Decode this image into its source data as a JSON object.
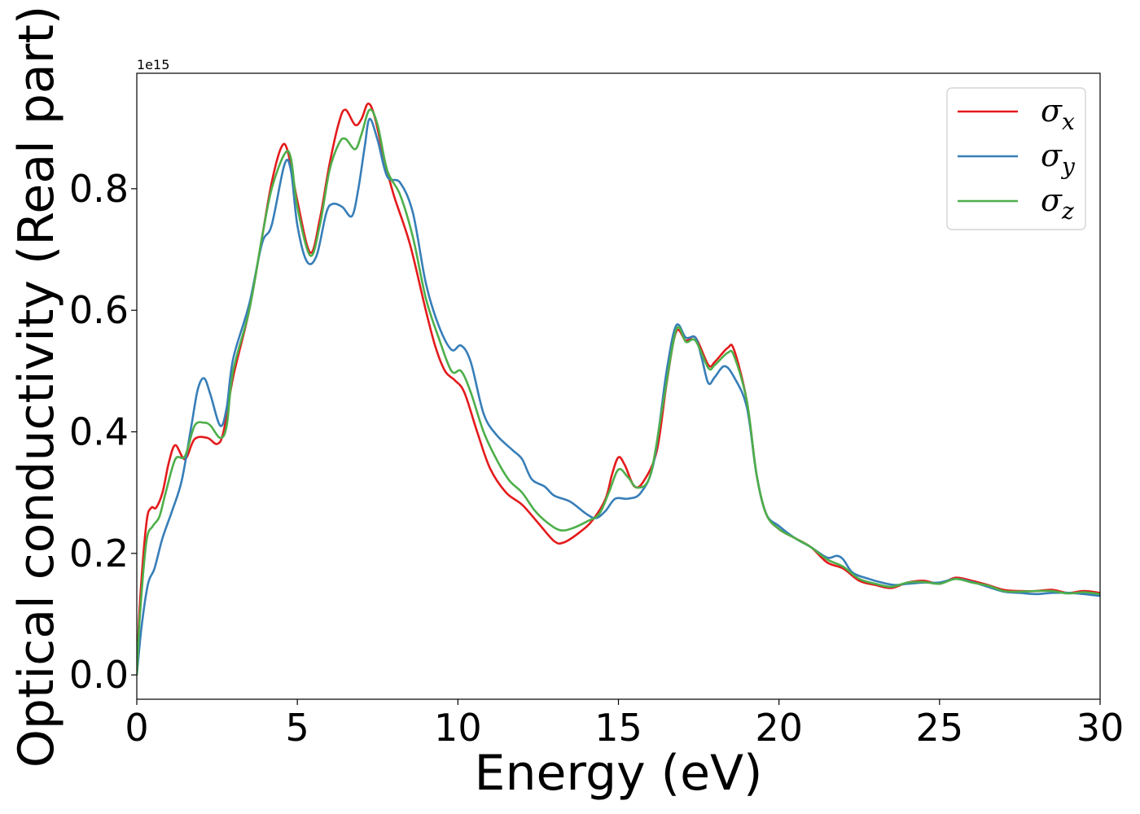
{
  "chart_data": {
    "type": "line",
    "title": "",
    "xlabel": "Energy (eV)",
    "ylabel": "Optical conductivity (Real part)",
    "y_offset_label": "1e15",
    "xlim": [
      0,
      30
    ],
    "ylim": [
      -0.04,
      0.99
    ],
    "x_ticks": [
      0,
      5,
      10,
      15,
      20,
      25,
      30
    ],
    "x_tick_labels": [
      "0",
      "5",
      "10",
      "15",
      "20",
      "25",
      "30"
    ],
    "y_ticks": [
      0.0,
      0.2,
      0.4,
      0.6,
      0.8
    ],
    "y_tick_labels": [
      "0.0",
      "0.2",
      "0.4",
      "0.6",
      "0.8"
    ],
    "grid": false,
    "legend_position": "top-right",
    "series": [
      {
        "name": "σx",
        "legend_base": "σ",
        "legend_sub": "x",
        "color": "#e41a1c",
        "points": [
          [
            0,
            0
          ],
          [
            0.1,
            0.12
          ],
          [
            0.3,
            0.25
          ],
          [
            0.45,
            0.275
          ],
          [
            0.6,
            0.275
          ],
          [
            0.8,
            0.3
          ],
          [
            1.0,
            0.35
          ],
          [
            1.2,
            0.378
          ],
          [
            1.5,
            0.355
          ],
          [
            1.8,
            0.388
          ],
          [
            2.2,
            0.39
          ],
          [
            2.5,
            0.38
          ],
          [
            2.7,
            0.4
          ],
          [
            3.0,
            0.49
          ],
          [
            3.5,
            0.6
          ],
          [
            3.9,
            0.72
          ],
          [
            4.2,
            0.81
          ],
          [
            4.5,
            0.868
          ],
          [
            4.7,
            0.862
          ],
          [
            5.0,
            0.78
          ],
          [
            5.4,
            0.695
          ],
          [
            5.7,
            0.75
          ],
          [
            6.0,
            0.84
          ],
          [
            6.3,
            0.91
          ],
          [
            6.5,
            0.93
          ],
          [
            6.8,
            0.905
          ],
          [
            7.0,
            0.915
          ],
          [
            7.2,
            0.94
          ],
          [
            7.4,
            0.92
          ],
          [
            7.7,
            0.85
          ],
          [
            8.0,
            0.79
          ],
          [
            8.5,
            0.71
          ],
          [
            9.0,
            0.6
          ],
          [
            9.3,
            0.54
          ],
          [
            9.6,
            0.5
          ],
          [
            9.9,
            0.485
          ],
          [
            10.2,
            0.465
          ],
          [
            10.6,
            0.4
          ],
          [
            11.0,
            0.34
          ],
          [
            11.5,
            0.3
          ],
          [
            12.0,
            0.28
          ],
          [
            12.5,
            0.25
          ],
          [
            13.0,
            0.22
          ],
          [
            13.3,
            0.218
          ],
          [
            13.8,
            0.235
          ],
          [
            14.2,
            0.255
          ],
          [
            14.6,
            0.29
          ],
          [
            14.8,
            0.33
          ],
          [
            15.0,
            0.358
          ],
          [
            15.2,
            0.345
          ],
          [
            15.5,
            0.31
          ],
          [
            15.8,
            0.32
          ],
          [
            16.2,
            0.37
          ],
          [
            16.5,
            0.48
          ],
          [
            16.8,
            0.565
          ],
          [
            17.1,
            0.55
          ],
          [
            17.4,
            0.555
          ],
          [
            17.8,
            0.51
          ],
          [
            18.0,
            0.515
          ],
          [
            18.4,
            0.538
          ],
          [
            18.6,
            0.535
          ],
          [
            19.0,
            0.45
          ],
          [
            19.3,
            0.33
          ],
          [
            19.6,
            0.265
          ],
          [
            20.0,
            0.24
          ],
          [
            20.5,
            0.225
          ],
          [
            21.0,
            0.21
          ],
          [
            21.5,
            0.185
          ],
          [
            22.0,
            0.175
          ],
          [
            22.5,
            0.155
          ],
          [
            23.0,
            0.148
          ],
          [
            23.5,
            0.143
          ],
          [
            24.0,
            0.152
          ],
          [
            24.5,
            0.155
          ],
          [
            25.0,
            0.15
          ],
          [
            25.5,
            0.16
          ],
          [
            26.0,
            0.155
          ],
          [
            26.5,
            0.148
          ],
          [
            27.0,
            0.14
          ],
          [
            27.5,
            0.138
          ],
          [
            28.0,
            0.138
          ],
          [
            28.5,
            0.14
          ],
          [
            29.0,
            0.135
          ],
          [
            29.5,
            0.138
          ],
          [
            30.0,
            0.135
          ]
        ]
      },
      {
        "name": "σy",
        "legend_base": "σ",
        "legend_sub": "y",
        "color": "#377eb8",
        "points": [
          [
            0,
            0
          ],
          [
            0.15,
            0.08
          ],
          [
            0.35,
            0.15
          ],
          [
            0.55,
            0.175
          ],
          [
            0.8,
            0.225
          ],
          [
            1.1,
            0.27
          ],
          [
            1.4,
            0.32
          ],
          [
            1.7,
            0.41
          ],
          [
            1.9,
            0.47
          ],
          [
            2.1,
            0.488
          ],
          [
            2.3,
            0.46
          ],
          [
            2.6,
            0.41
          ],
          [
            2.8,
            0.44
          ],
          [
            3.0,
            0.52
          ],
          [
            3.5,
            0.61
          ],
          [
            3.9,
            0.71
          ],
          [
            4.2,
            0.74
          ],
          [
            4.6,
            0.84
          ],
          [
            4.8,
            0.83
          ],
          [
            5.0,
            0.74
          ],
          [
            5.3,
            0.68
          ],
          [
            5.6,
            0.69
          ],
          [
            5.9,
            0.76
          ],
          [
            6.1,
            0.775
          ],
          [
            6.4,
            0.77
          ],
          [
            6.7,
            0.755
          ],
          [
            6.9,
            0.8
          ],
          [
            7.1,
            0.87
          ],
          [
            7.25,
            0.915
          ],
          [
            7.5,
            0.88
          ],
          [
            7.8,
            0.82
          ],
          [
            8.2,
            0.81
          ],
          [
            8.6,
            0.76
          ],
          [
            9.0,
            0.645
          ],
          [
            9.4,
            0.575
          ],
          [
            9.8,
            0.535
          ],
          [
            10.1,
            0.542
          ],
          [
            10.4,
            0.515
          ],
          [
            10.8,
            0.43
          ],
          [
            11.2,
            0.395
          ],
          [
            11.7,
            0.37
          ],
          [
            12.0,
            0.355
          ],
          [
            12.3,
            0.322
          ],
          [
            12.7,
            0.31
          ],
          [
            13.0,
            0.295
          ],
          [
            13.5,
            0.285
          ],
          [
            14.0,
            0.265
          ],
          [
            14.3,
            0.258
          ],
          [
            14.6,
            0.27
          ],
          [
            14.9,
            0.29
          ],
          [
            15.3,
            0.29
          ],
          [
            15.7,
            0.3
          ],
          [
            16.1,
            0.35
          ],
          [
            16.5,
            0.5
          ],
          [
            16.8,
            0.575
          ],
          [
            17.1,
            0.555
          ],
          [
            17.4,
            0.555
          ],
          [
            17.6,
            0.52
          ],
          [
            17.8,
            0.48
          ],
          [
            18.0,
            0.49
          ],
          [
            18.3,
            0.508
          ],
          [
            18.6,
            0.49
          ],
          [
            19.0,
            0.44
          ],
          [
            19.3,
            0.33
          ],
          [
            19.6,
            0.265
          ],
          [
            20.0,
            0.245
          ],
          [
            20.5,
            0.225
          ],
          [
            21.0,
            0.21
          ],
          [
            21.5,
            0.193
          ],
          [
            21.8,
            0.196
          ],
          [
            22.0,
            0.19
          ],
          [
            22.3,
            0.168
          ],
          [
            22.8,
            0.158
          ],
          [
            23.2,
            0.152
          ],
          [
            23.6,
            0.148
          ],
          [
            24.0,
            0.15
          ],
          [
            24.5,
            0.152
          ],
          [
            25.0,
            0.152
          ],
          [
            25.5,
            0.158
          ],
          [
            26.0,
            0.153
          ],
          [
            26.5,
            0.145
          ],
          [
            27.0,
            0.137
          ],
          [
            27.5,
            0.135
          ],
          [
            28.0,
            0.133
          ],
          [
            28.5,
            0.135
          ],
          [
            29.0,
            0.135
          ],
          [
            29.5,
            0.133
          ],
          [
            30.0,
            0.13
          ]
        ]
      },
      {
        "name": "σz",
        "legend_base": "σ",
        "legend_sub": "z",
        "color": "#4daf4a",
        "points": [
          [
            0,
            0
          ],
          [
            0.1,
            0.1
          ],
          [
            0.3,
            0.22
          ],
          [
            0.5,
            0.245
          ],
          [
            0.7,
            0.26
          ],
          [
            0.9,
            0.3
          ],
          [
            1.2,
            0.355
          ],
          [
            1.5,
            0.36
          ],
          [
            1.8,
            0.41
          ],
          [
            2.1,
            0.415
          ],
          [
            2.3,
            0.41
          ],
          [
            2.6,
            0.39
          ],
          [
            2.8,
            0.41
          ],
          [
            3.0,
            0.5
          ],
          [
            3.5,
            0.6
          ],
          [
            3.9,
            0.72
          ],
          [
            4.2,
            0.8
          ],
          [
            4.6,
            0.857
          ],
          [
            4.8,
            0.85
          ],
          [
            5.0,
            0.77
          ],
          [
            5.4,
            0.69
          ],
          [
            5.7,
            0.74
          ],
          [
            6.0,
            0.83
          ],
          [
            6.3,
            0.875
          ],
          [
            6.5,
            0.882
          ],
          [
            6.8,
            0.865
          ],
          [
            7.0,
            0.89
          ],
          [
            7.25,
            0.93
          ],
          [
            7.5,
            0.905
          ],
          [
            7.8,
            0.83
          ],
          [
            8.2,
            0.79
          ],
          [
            8.6,
            0.72
          ],
          [
            9.0,
            0.62
          ],
          [
            9.4,
            0.555
          ],
          [
            9.8,
            0.5
          ],
          [
            10.1,
            0.5
          ],
          [
            10.4,
            0.465
          ],
          [
            10.8,
            0.4
          ],
          [
            11.2,
            0.355
          ],
          [
            11.6,
            0.32
          ],
          [
            12.0,
            0.3
          ],
          [
            12.4,
            0.27
          ],
          [
            12.8,
            0.25
          ],
          [
            13.2,
            0.238
          ],
          [
            13.6,
            0.242
          ],
          [
            14.0,
            0.252
          ],
          [
            14.4,
            0.265
          ],
          [
            14.7,
            0.3
          ],
          [
            15.0,
            0.338
          ],
          [
            15.3,
            0.325
          ],
          [
            15.6,
            0.308
          ],
          [
            16.0,
            0.33
          ],
          [
            16.4,
            0.45
          ],
          [
            16.8,
            0.568
          ],
          [
            17.1,
            0.548
          ],
          [
            17.4,
            0.55
          ],
          [
            17.8,
            0.505
          ],
          [
            18.0,
            0.51
          ],
          [
            18.4,
            0.53
          ],
          [
            18.6,
            0.525
          ],
          [
            19.0,
            0.45
          ],
          [
            19.3,
            0.33
          ],
          [
            19.6,
            0.265
          ],
          [
            20.0,
            0.24
          ],
          [
            20.5,
            0.225
          ],
          [
            21.0,
            0.21
          ],
          [
            21.5,
            0.19
          ],
          [
            22.0,
            0.178
          ],
          [
            22.5,
            0.158
          ],
          [
            23.0,
            0.15
          ],
          [
            23.5,
            0.145
          ],
          [
            24.0,
            0.152
          ],
          [
            24.5,
            0.153
          ],
          [
            25.0,
            0.15
          ],
          [
            25.5,
            0.158
          ],
          [
            26.0,
            0.152
          ],
          [
            26.5,
            0.147
          ],
          [
            27.0,
            0.138
          ],
          [
            27.5,
            0.137
          ],
          [
            28.0,
            0.138
          ],
          [
            28.5,
            0.138
          ],
          [
            29.0,
            0.134
          ],
          [
            29.5,
            0.136
          ],
          [
            30.0,
            0.133
          ]
        ]
      }
    ]
  }
}
